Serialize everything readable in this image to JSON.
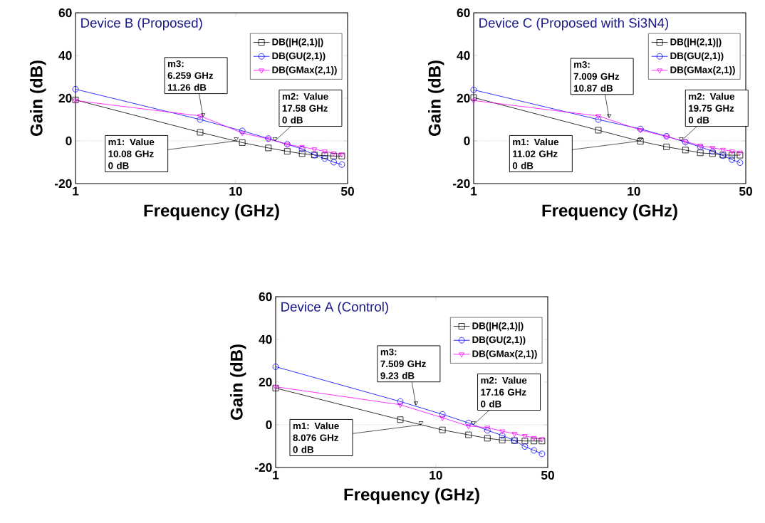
{
  "chart_data": [
    {
      "type": "line",
      "title": "Device B (Proposed)",
      "xlabel": "Frequency (GHz)",
      "ylabel": "Gain (dB)",
      "log": "x",
      "legend": "top right",
      "xlim": [
        1,
        50
      ],
      "ylim": [
        -20,
        60
      ],
      "xticks": [
        1,
        10,
        50
      ],
      "yticks": [
        -20,
        0,
        20,
        40,
        60
      ],
      "x": [
        1,
        6,
        11,
        16,
        21,
        26,
        31,
        36,
        41,
        46
      ],
      "series": [
        {
          "name": "DB(|H(2,1)|)",
          "color": "#000000",
          "marker": "square",
          "values": [
            19.2,
            4.0,
            -0.8,
            -3.3,
            -4.9,
            -6.0,
            -6.6,
            -6.9,
            -7.1,
            -7.1
          ]
        },
        {
          "name": "DB(GU(2,1))",
          "color": "#0000ff",
          "marker": "circle",
          "values": [
            24.2,
            10.0,
            4.7,
            1.1,
            -1.6,
            -3.8,
            -6.6,
            -8.3,
            -10.0,
            -11.1
          ]
        },
        {
          "name": "DB(GMax(2,1))",
          "color": "#ff00ff",
          "marker": "triangle",
          "values": [
            18.9,
            11.7,
            3.7,
            0.9,
            -1.7,
            -2.8,
            -3.9,
            -4.9,
            -5.8,
            -6.3
          ]
        }
      ],
      "ref_lines": [
        {
          "axis": "y",
          "value": 0,
          "color": "#808080",
          "line_style": "dotted"
        }
      ],
      "annotations": [
        {
          "text": "m1: Value\n10.08 GHz\n0 dB",
          "x": 10.08,
          "y": 0
        },
        {
          "text": "m2: Value\n17.58 GHz\n0 dB",
          "x": 17.58,
          "y": 0
        },
        {
          "text": "m3:\n6.259 GHz\n11.26 dB",
          "x": 6.259,
          "y": 11.26
        }
      ]
    },
    {
      "type": "line",
      "title": "Device C (Proposed with Si3N4)",
      "xlabel": "Frequency (GHz)",
      "ylabel": "Gain (dB)",
      "log": "x",
      "legend": "top right",
      "xlim": [
        1,
        50
      ],
      "ylim": [
        -20,
        60
      ],
      "xticks": [
        1,
        10,
        50
      ],
      "yticks": [
        -20,
        0,
        20,
        40,
        60
      ],
      "x": [
        1,
        6,
        11,
        16,
        21,
        26,
        31,
        36,
        41,
        46
      ],
      "series": [
        {
          "name": "DB(|H(2,1)|)",
          "color": "#000000",
          "marker": "square",
          "values": [
            20.3,
            5.0,
            -0.2,
            -2.8,
            -4.3,
            -5.6,
            -6.0,
            -6.6,
            -6.7,
            -6.7
          ]
        },
        {
          "name": "DB(GU(2,1))",
          "color": "#0000ff",
          "marker": "circle",
          "values": [
            23.9,
            10.0,
            5.6,
            2.2,
            -0.6,
            -2.8,
            -4.9,
            -6.9,
            -8.8,
            -10.2
          ]
        },
        {
          "name": "DB(GMax(2,1))",
          "color": "#ff00ff",
          "marker": "triangle",
          "values": [
            18.9,
            11.7,
            5.1,
            2.0,
            -0.3,
            -2.2,
            -3.2,
            -4.1,
            -4.9,
            -5.4
          ]
        }
      ],
      "ref_lines": [
        {
          "axis": "y",
          "value": 0,
          "color": "#808080",
          "line_style": "dotted"
        }
      ],
      "annotations": [
        {
          "text": "m1: Value\n11.02 GHz\n0 dB",
          "x": 11.02,
          "y": 0
        },
        {
          "text": "m2: Value\n19.75 GHz\n0 dB",
          "x": 19.75,
          "y": 0
        },
        {
          "text": "m3:\n7.009 GHz\n10.87 dB",
          "x": 7.009,
          "y": 10.87
        }
      ]
    },
    {
      "type": "line",
      "title": "Device A (Control)",
      "xlabel": "Frequency (GHz)",
      "ylabel": "Gain (dB)",
      "log": "x",
      "legend": "top right",
      "xlim": [
        1,
        50
      ],
      "ylim": [
        -20,
        60
      ],
      "xticks": [
        1,
        10,
        50
      ],
      "yticks": [
        -20,
        0,
        20,
        40,
        60
      ],
      "x": [
        1,
        6,
        11,
        16,
        21,
        26,
        31,
        36,
        41,
        46
      ],
      "series": [
        {
          "name": "DB(|H(2,1)|)",
          "color": "#000000",
          "marker": "square",
          "values": [
            17.2,
            2.4,
            -2.4,
            -4.7,
            -6.3,
            -7.2,
            -7.4,
            -7.6,
            -7.6,
            -7.6
          ]
        },
        {
          "name": "DB(GU(2,1))",
          "color": "#0000ff",
          "marker": "circle",
          "values": [
            27.2,
            10.9,
            4.9,
            0.9,
            -2.6,
            -5.0,
            -7.4,
            -10.2,
            -12.0,
            -13.6
          ]
        },
        {
          "name": "DB(GMax(2,1))",
          "color": "#ff00ff",
          "marker": "triangle",
          "values": [
            17.8,
            9.4,
            3.3,
            -0.6,
            -1.3,
            -3.0,
            -4.2,
            -5.2,
            -6.1,
            -6.7
          ]
        }
      ],
      "ref_lines": [
        {
          "axis": "y",
          "value": 0,
          "color": "#808080",
          "line_style": "dotted"
        }
      ],
      "annotations": [
        {
          "text": "m1: Value\n8.076 GHz\n0 dB",
          "x": 8.076,
          "y": 0
        },
        {
          "text": "m2: Value\n17.16 GHz\n0 dB",
          "x": 17.16,
          "y": 0
        },
        {
          "text": "m3:\n7.509 GHz\n9.23 dB",
          "x": 7.509,
          "y": 9.23
        }
      ]
    }
  ]
}
